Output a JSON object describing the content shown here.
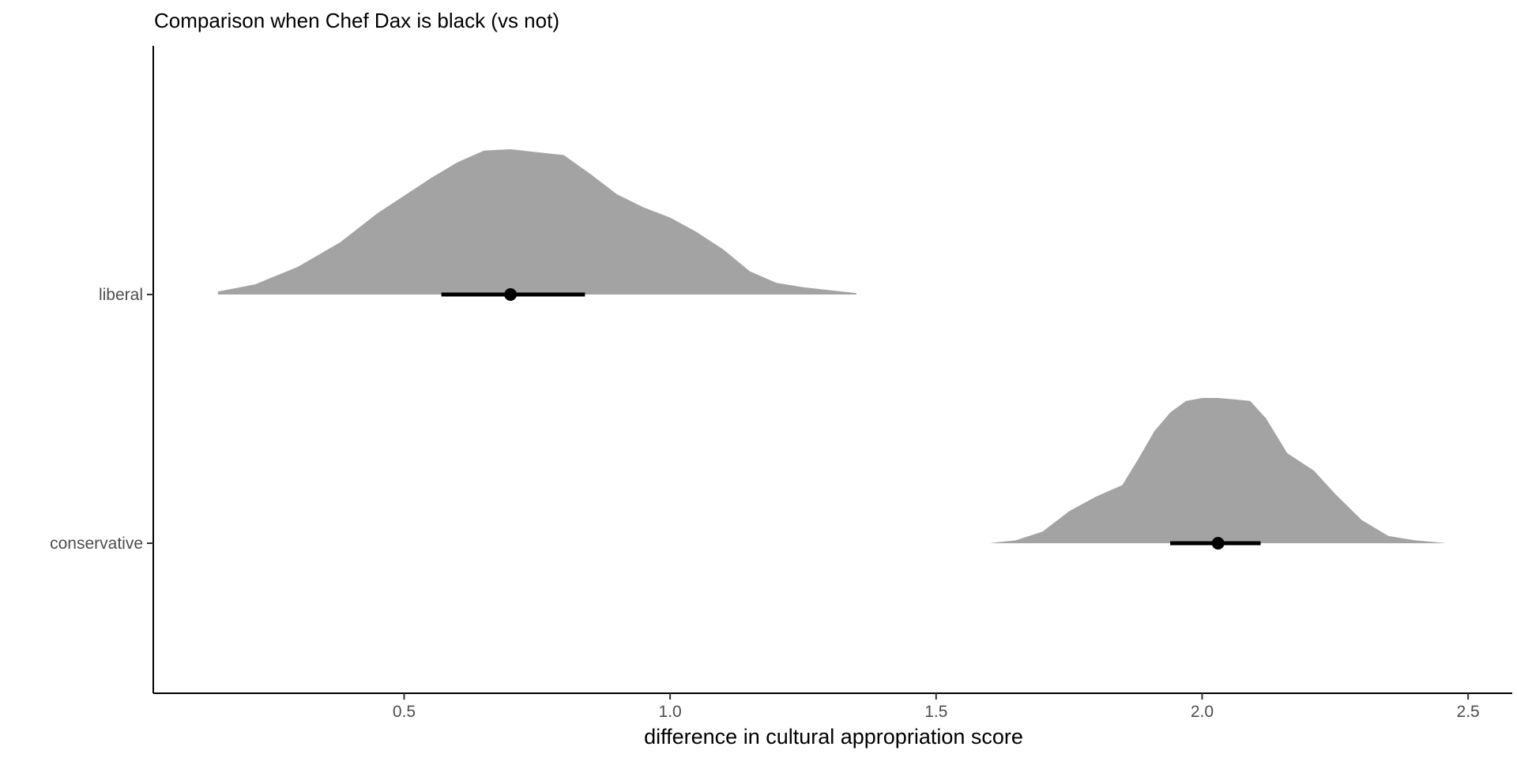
{
  "chart_data": {
    "type": "area",
    "subtype": "halfeye / density with point interval",
    "title": "Comparison when Chef Dax is black (vs not)",
    "xlabel": "difference in cultural appropriation score",
    "ylabel": "",
    "xlim": [
      0.03,
      2.58
    ],
    "x_ticks": [
      "0.5",
      "1.0",
      "1.5",
      "2.0",
      "2.5"
    ],
    "categories": [
      "liberal",
      "conservative"
    ],
    "grid": false,
    "legend": "none",
    "fill_color": "#a3a3a3",
    "interval_color": "#000000",
    "series": [
      {
        "name": "liberal",
        "point": 0.7,
        "interval": [
          0.57,
          0.84
        ],
        "density": {
          "x": [
            0.15,
            0.22,
            0.3,
            0.38,
            0.45,
            0.5,
            0.55,
            0.6,
            0.65,
            0.7,
            0.75,
            0.8,
            0.85,
            0.9,
            0.95,
            1.0,
            1.05,
            1.1,
            1.15,
            1.2,
            1.25,
            1.3,
            1.35
          ],
          "y": [
            0.02,
            0.07,
            0.19,
            0.36,
            0.56,
            0.68,
            0.8,
            0.91,
            0.99,
            1.0,
            0.98,
            0.96,
            0.83,
            0.69,
            0.6,
            0.53,
            0.43,
            0.31,
            0.16,
            0.08,
            0.05,
            0.03,
            0.01
          ]
        }
      },
      {
        "name": "conservative",
        "point": 2.03,
        "interval": [
          1.94,
          2.11
        ],
        "density": {
          "x": [
            1.6,
            1.65,
            1.7,
            1.75,
            1.8,
            1.85,
            1.88,
            1.91,
            1.94,
            1.97,
            2.0,
            2.03,
            2.06,
            2.09,
            2.12,
            2.16,
            2.21,
            2.25,
            2.3,
            2.35,
            2.4,
            2.46
          ],
          "y": [
            0.0,
            0.02,
            0.08,
            0.22,
            0.32,
            0.4,
            0.58,
            0.77,
            0.9,
            0.98,
            1.0,
            1.0,
            0.99,
            0.98,
            0.86,
            0.62,
            0.5,
            0.34,
            0.16,
            0.05,
            0.02,
            0.0
          ]
        }
      }
    ]
  }
}
